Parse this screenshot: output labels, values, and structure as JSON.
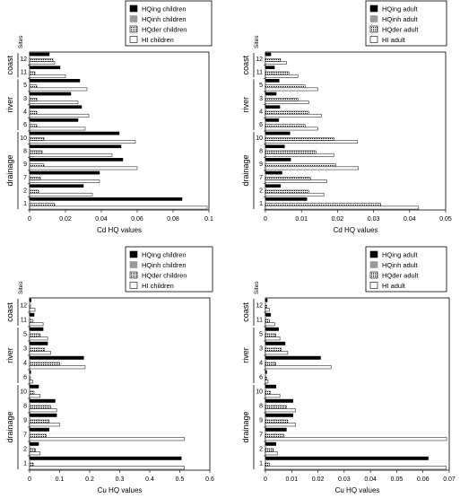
{
  "colors": {
    "ing": "#000000",
    "inh": "#9a9a9a",
    "der": "#ffffff",
    "hi": "#ffffff",
    "axis": "#000000"
  },
  "chart_data": [
    {
      "type": "bar",
      "orientation": "horizontal",
      "xlabel": "Cd HQ values",
      "ylabel": "Sites",
      "xlim": [
        0,
        0.1
      ],
      "xticks": [
        0,
        0.02,
        0.04,
        0.06,
        0.08,
        0.1
      ],
      "xtick_labels": [
        "0",
        "0.02",
        "0.04",
        "0.06",
        "0.08",
        "0.1"
      ],
      "legend_position": "top-right",
      "legend": [
        "HQing children",
        "HQinh children",
        "HQder children",
        "HI children"
      ],
      "groups": [
        {
          "label": "coast",
          "sites": [
            "12",
            "11"
          ]
        },
        {
          "label": "river",
          "sites": [
            "5",
            "3",
            "4",
            "6"
          ]
        },
        {
          "label": "drainage",
          "sites": [
            "10",
            "8",
            "9",
            "7",
            "2",
            "1"
          ]
        }
      ],
      "categories": [
        "12",
        "11",
        "5",
        "3",
        "4",
        "6",
        "10",
        "8",
        "9",
        "7",
        "2",
        "1"
      ],
      "series": [
        {
          "name": "HQing children",
          "values": [
            0.011,
            0.017,
            0.028,
            0.023,
            0.029,
            0.027,
            0.05,
            0.051,
            0.052,
            0.039,
            0.03,
            0.085
          ]
        },
        {
          "name": "HQinh children",
          "values": [
            0.0002,
            0.0002,
            0.0002,
            0.0002,
            0.0002,
            0.0002,
            0.0002,
            0.0002,
            0.0002,
            0.0002,
            0.0002,
            0.0002
          ]
        },
        {
          "name": "HQder children",
          "values": [
            0.013,
            0.003,
            0.004,
            0.004,
            0.004,
            0.004,
            0.008,
            0.007,
            0.008,
            0.006,
            0.005,
            0.014
          ]
        },
        {
          "name": "HI children",
          "values": [
            0.014,
            0.02,
            0.032,
            0.027,
            0.033,
            0.031,
            0.059,
            0.046,
            0.06,
            0.039,
            0.035,
            0.099
          ]
        }
      ]
    },
    {
      "type": "bar",
      "orientation": "horizontal",
      "xlabel": "Cd HQ values",
      "ylabel": "Sites",
      "xlim": [
        0,
        0.05
      ],
      "xticks": [
        0,
        0.01,
        0.02,
        0.03,
        0.04,
        0.05
      ],
      "xtick_labels": [
        "0",
        "0.01",
        "0.02",
        "0.03",
        "0.04",
        "0.05"
      ],
      "legend_position": "top-right",
      "legend": [
        "HQing adult",
        "HQinh adult",
        "HQder adult",
        "HI adult"
      ],
      "groups": [
        {
          "label": "coast",
          "sites": [
            "12",
            "11"
          ]
        },
        {
          "label": "river",
          "sites": [
            "5",
            "3",
            "4",
            "6"
          ]
        },
        {
          "label": "drainage",
          "sites": [
            "10",
            "8",
            "9",
            "7",
            "2",
            "1"
          ]
        }
      ],
      "categories": [
        "12",
        "11",
        "5",
        "3",
        "4",
        "6",
        "10",
        "8",
        "9",
        "7",
        "2",
        "1"
      ],
      "series": [
        {
          "name": "HQing adult",
          "values": [
            0.0015,
            0.0025,
            0.0038,
            0.003,
            0.004,
            0.0037,
            0.0068,
            0.0053,
            0.007,
            0.0046,
            0.0042,
            0.0115
          ]
        },
        {
          "name": "HQinh adult",
          "values": [
            0.0001,
            0.0001,
            0.0001,
            0.0001,
            0.0001,
            0.0001,
            0.0001,
            0.0001,
            0.0001,
            0.0001,
            0.0001,
            0.0001
          ]
        },
        {
          "name": "HQder adult",
          "values": [
            0.0042,
            0.0065,
            0.011,
            0.009,
            0.012,
            0.011,
            0.019,
            0.014,
            0.0195,
            0.0125,
            0.012,
            0.032
          ]
        },
        {
          "name": "HI adult",
          "values": [
            0.0058,
            0.009,
            0.0145,
            0.012,
            0.0155,
            0.0145,
            0.0255,
            0.019,
            0.0258,
            0.017,
            0.0162,
            0.0425
          ]
        }
      ]
    },
    {
      "type": "bar",
      "orientation": "horizontal",
      "xlabel": "Cu HQ values",
      "ylabel": "Sites",
      "xlim": [
        0,
        0.6
      ],
      "xticks": [
        0,
        0.1,
        0.2,
        0.3,
        0.4,
        0.5,
        0.6
      ],
      "xtick_labels": [
        "0",
        "0.1",
        "0.2",
        "0.3",
        "0.4",
        "0.5",
        "0.6"
      ],
      "legend_position": "top-right",
      "legend": [
        "HQing children",
        "HQinh children",
        "HQder children",
        "HI children"
      ],
      "groups": [
        {
          "label": "coast",
          "sites": [
            "12",
            "11"
          ]
        },
        {
          "label": "river",
          "sites": [
            "5",
            "3",
            "4",
            "6"
          ]
        },
        {
          "label": "drainage",
          "sites": [
            "10",
            "8",
            "9",
            "7",
            "2",
            "1"
          ]
        }
      ],
      "categories": [
        "12",
        "11",
        "5",
        "3",
        "4",
        "6",
        "10",
        "8",
        "9",
        "7",
        "2",
        "1"
      ],
      "series": [
        {
          "name": "HQing children",
          "values": [
            0.005,
            0.015,
            0.045,
            0.06,
            0.18,
            0.004,
            0.03,
            0.085,
            0.09,
            0.065,
            0.03,
            0.505
          ]
        },
        {
          "name": "HQinh children",
          "values": [
            0.0005,
            0.0005,
            0.0005,
            0.0005,
            0.0005,
            0.0005,
            0.0005,
            0.0005,
            0.0005,
            0.0005,
            0.0005,
            0.0005
          ]
        },
        {
          "name": "HQder children",
          "values": [
            0.003,
            0.01,
            0.035,
            0.05,
            0.1,
            0.003,
            0.015,
            0.07,
            0.065,
            0.055,
            0.02,
            0.012
          ]
        },
        {
          "name": "HI children",
          "values": [
            0.018,
            0.045,
            0.06,
            0.07,
            0.185,
            0.01,
            0.035,
            0.09,
            0.1,
            0.515,
            0.035,
            0.515
          ]
        }
      ]
    },
    {
      "type": "bar",
      "orientation": "horizontal",
      "xlabel": "Cu HQ values",
      "ylabel": "Sites",
      "xlim": [
        0,
        0.07
      ],
      "xticks": [
        0,
        0.01,
        0.02,
        0.03,
        0.04,
        0.05,
        0.06,
        0.07
      ],
      "xtick_labels": [
        "0",
        "0.01",
        "0.02",
        "0.03",
        "0.04",
        "0.05",
        "0.06",
        "0.07"
      ],
      "legend_position": "top-right",
      "legend": [
        "HQing adult",
        "HQinh adult",
        "HQder adult",
        "HI adult"
      ],
      "groups": [
        {
          "label": "coast",
          "sites": [
            "12",
            "11"
          ]
        },
        {
          "label": "river",
          "sites": [
            "5",
            "3",
            "4",
            "6"
          ]
        },
        {
          "label": "drainage",
          "sites": [
            "10",
            "8",
            "9",
            "7",
            "2",
            "1"
          ]
        }
      ],
      "categories": [
        "12",
        "11",
        "5",
        "3",
        "4",
        "6",
        "10",
        "8",
        "9",
        "7",
        "2",
        "1"
      ],
      "series": [
        {
          "name": "HQing adult",
          "values": [
            0.0007,
            0.002,
            0.005,
            0.0075,
            0.021,
            0.0005,
            0.004,
            0.0105,
            0.0105,
            0.008,
            0.004,
            0.062
          ]
        },
        {
          "name": "HQinh adult",
          "values": [
            0.0001,
            0.0001,
            0.0001,
            0.0001,
            0.0001,
            0.0001,
            0.0001,
            0.0001,
            0.0001,
            0.0001,
            0.0001,
            0.0001
          ]
        },
        {
          "name": "HQder adult",
          "values": [
            0.0005,
            0.0015,
            0.004,
            0.006,
            0.004,
            0.0004,
            0.002,
            0.008,
            0.0085,
            0.007,
            0.003,
            0.0015
          ]
        },
        {
          "name": "HI adult",
          "values": [
            0.0015,
            0.0035,
            0.0055,
            0.0085,
            0.025,
            0.001,
            0.0055,
            0.0115,
            0.0115,
            0.069,
            0.0045,
            0.0688
          ]
        }
      ]
    }
  ]
}
